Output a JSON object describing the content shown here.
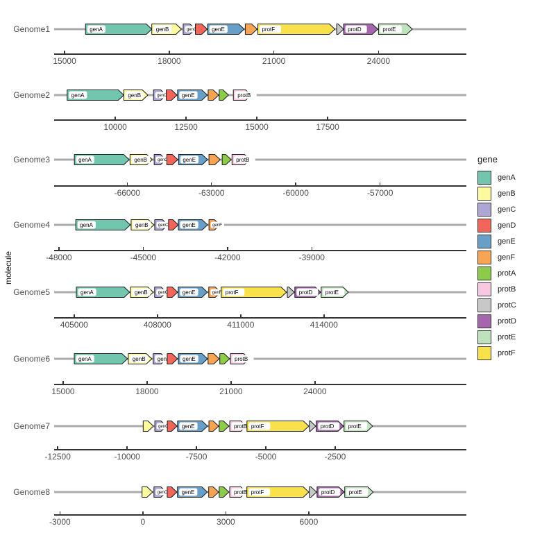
{
  "chart_data": {
    "type": "gene_arrow_map",
    "ylabel": "molecule",
    "legend_title": "gene",
    "legend_position": "right",
    "legend_entries": [
      "genA",
      "genB",
      "genC",
      "genD",
      "genE",
      "genF",
      "protA",
      "protB",
      "protC",
      "protD",
      "protE",
      "protF"
    ],
    "colors": {
      "genA": "#72C6AD",
      "genB": "#FCFA9F",
      "genC": "#AEA6D2",
      "genD": "#F2655B",
      "genE": "#689FC9",
      "genF": "#F8A452",
      "protA": "#8DCC48",
      "protB": "#F8C8E2",
      "protC": "#C8C8C8",
      "protD": "#A566AD",
      "protE": "#BDE2BC",
      "protF": "#F8E14B"
    },
    "style": {
      "molecule_line_color": "#ABABAB",
      "arrow_outline_color": "#1A1A1A",
      "axis_color": "#333333",
      "tick_text_color": "#4D4D4D",
      "label_box_color": "#FFFFFF"
    },
    "genomes": [
      {
        "name": "Genome1",
        "xmin": 14700,
        "xmax": 26520,
        "ticks": [
          15000,
          18000,
          21000,
          24000
        ],
        "genes": [
          {
            "gene": "genA",
            "start": 15600,
            "end": 17500,
            "label": "genA"
          },
          {
            "gene": "genB",
            "start": 17500,
            "end": 18350,
            "label": "genB"
          },
          {
            "gene": "genC",
            "start": 18400,
            "end": 18750,
            "label": "genC",
            "small": true
          },
          {
            "gene": "genD",
            "start": 18750,
            "end": 19090,
            "label": ""
          },
          {
            "gene": "genE",
            "start": 19100,
            "end": 20150,
            "label": "genE"
          },
          {
            "gene": "genF",
            "start": 20180,
            "end": 20520,
            "label": ""
          },
          {
            "gene": "protF",
            "start": 20540,
            "end": 22750,
            "label": "protF"
          },
          {
            "gene": "protC",
            "start": 22800,
            "end": 23000,
            "label": ""
          },
          {
            "gene": "protD",
            "start": 23000,
            "end": 23980,
            "label": "protD"
          },
          {
            "gene": "protE",
            "start": 24000,
            "end": 24970,
            "label": "protE"
          }
        ]
      },
      {
        "name": "Genome2",
        "xmin": 7840,
        "xmax": 22400,
        "ticks": [
          10000,
          12500,
          15000,
          17500
        ],
        "genes": [
          {
            "gene": "genA",
            "start": 8300,
            "end": 10300,
            "label": "genA"
          },
          {
            "gene": "genB",
            "start": 10300,
            "end": 11150,
            "label": "genB"
          },
          {
            "gene": "genC",
            "start": 11350,
            "end": 11800,
            "label": "genC",
            "small": true
          },
          {
            "gene": "genD",
            "start": 11800,
            "end": 12180,
            "label": ""
          },
          {
            "gene": "genE",
            "start": 12200,
            "end": 13250,
            "label": "genE"
          },
          {
            "gene": "genF",
            "start": 13280,
            "end": 13650,
            "label": ""
          },
          {
            "gene": "protA",
            "start": 13670,
            "end": 14000,
            "label": ""
          },
          {
            "gene": "protB",
            "start": 14170,
            "end": 14800,
            "label": "protB"
          }
        ]
      },
      {
        "name": "Genome3",
        "xmin": -68600,
        "xmax": -53930,
        "ticks": [
          -66000,
          -63000,
          -60000,
          -57000
        ],
        "genes": [
          {
            "gene": "genA",
            "start": -67880,
            "end": -65930,
            "label": "genA"
          },
          {
            "gene": "genB",
            "start": -65900,
            "end": -65110,
            "label": "genB"
          },
          {
            "gene": "genC",
            "start": -65040,
            "end": -64620,
            "label": "genC",
            "small": true
          },
          {
            "gene": "genD",
            "start": -64590,
            "end": -64200,
            "label": ""
          },
          {
            "gene": "genE",
            "start": -64170,
            "end": -63140,
            "label": "genE"
          },
          {
            "gene": "genF",
            "start": -63090,
            "end": -62690,
            "label": ""
          },
          {
            "gene": "protA",
            "start": -62620,
            "end": -62300,
            "label": ""
          },
          {
            "gene": "protB",
            "start": -62270,
            "end": -61630,
            "label": "protB"
          }
        ]
      },
      {
        "name": "Genome4",
        "xmin": -48170,
        "xmax": -33500,
        "ticks": [
          -48000,
          -45000,
          -42000,
          -39000
        ],
        "genes": [
          {
            "gene": "genA",
            "start": -47400,
            "end": -45460,
            "label": "genA"
          },
          {
            "gene": "genB",
            "start": -45430,
            "end": -44620,
            "label": "genB"
          },
          {
            "gene": "genC",
            "start": -44590,
            "end": -44120,
            "label": "genC",
            "small": true
          },
          {
            "gene": "genD",
            "start": -44100,
            "end": -43750,
            "label": ""
          },
          {
            "gene": "genE",
            "start": -43750,
            "end": -42710,
            "label": "genE"
          },
          {
            "gene": "genF",
            "start": -42660,
            "end": -42270,
            "label": "genF",
            "small": true
          }
        ]
      },
      {
        "name": "Genome5",
        "xmin": 404280,
        "xmax": 419130,
        "ticks": [
          405000,
          408000,
          411000,
          414000
        ],
        "genes": [
          {
            "gene": "genA",
            "start": 405080,
            "end": 407000,
            "label": "genA"
          },
          {
            "gene": "genB",
            "start": 407030,
            "end": 407850,
            "label": "genB"
          },
          {
            "gene": "genC",
            "start": 407900,
            "end": 408330,
            "label": "genC",
            "small": true
          },
          {
            "gene": "genD",
            "start": 408350,
            "end": 408730,
            "label": ""
          },
          {
            "gene": "genE",
            "start": 408750,
            "end": 409800,
            "label": "genE"
          },
          {
            "gene": "genF",
            "start": 409850,
            "end": 410280,
            "label": "genF",
            "small": true
          },
          {
            "gene": "protF",
            "start": 410300,
            "end": 412650,
            "label": "protF"
          },
          {
            "gene": "protC",
            "start": 412680,
            "end": 412930,
            "label": ""
          },
          {
            "gene": "protD",
            "start": 412950,
            "end": 413880,
            "label": "protD"
          },
          {
            "gene": "protE",
            "start": 413900,
            "end": 414880,
            "label": "protE"
          }
        ]
      },
      {
        "name": "Genome6",
        "xmin": 14680,
        "xmax": 29410,
        "ticks": [
          15000,
          18000,
          21000,
          24000
        ],
        "genes": [
          {
            "gene": "genA",
            "start": 15400,
            "end": 17300,
            "label": "genA"
          },
          {
            "gene": "genB",
            "start": 17330,
            "end": 18170,
            "label": "genB"
          },
          {
            "gene": "genC",
            "start": 18220,
            "end": 18700,
            "label": "genC"
          },
          {
            "gene": "genD",
            "start": 18720,
            "end": 19090,
            "label": ""
          },
          {
            "gene": "genE",
            "start": 19120,
            "end": 20160,
            "label": "genE"
          },
          {
            "gene": "genF",
            "start": 20180,
            "end": 20580,
            "label": ""
          },
          {
            "gene": "protA",
            "start": 20600,
            "end": 20950,
            "label": ""
          },
          {
            "gene": "protB",
            "start": 20980,
            "end": 21650,
            "label": "protB"
          }
        ]
      },
      {
        "name": "Genome7",
        "xmin": -12630,
        "xmax": 2230,
        "ticks": [
          -12500,
          -10000,
          -7500,
          -5000,
          -2500
        ],
        "genes": [
          {
            "gene": "genB",
            "start": -9420,
            "end": -9050,
            "label": ""
          },
          {
            "gene": "genC",
            "start": -9000,
            "end": -8580,
            "label": "genC",
            "small": true
          },
          {
            "gene": "genD",
            "start": -8550,
            "end": -8200,
            "label": ""
          },
          {
            "gene": "genE",
            "start": -8180,
            "end": -7100,
            "label": "genE"
          },
          {
            "gene": "genF",
            "start": -7050,
            "end": -6700,
            "label": ""
          },
          {
            "gene": "protA",
            "start": -6680,
            "end": -6330,
            "label": ""
          },
          {
            "gene": "protB",
            "start": -6300,
            "end": -5700,
            "label": "protB"
          },
          {
            "gene": "protF",
            "start": -5680,
            "end": -3450,
            "label": "protF"
          },
          {
            "gene": "protC",
            "start": -3430,
            "end": -3200,
            "label": ""
          },
          {
            "gene": "protD",
            "start": -3180,
            "end": -2200,
            "label": "protD"
          },
          {
            "gene": "protE",
            "start": -2180,
            "end": -1150,
            "label": "protE"
          }
        ]
      },
      {
        "name": "Genome8",
        "xmin": -3210,
        "xmax": 11700,
        "ticks": [
          -3000,
          0,
          3000,
          6000
        ],
        "genes": [
          {
            "gene": "genB",
            "start": -30,
            "end": 350,
            "label": ""
          },
          {
            "gene": "genC",
            "start": 400,
            "end": 850,
            "label": "genC",
            "small": true
          },
          {
            "gene": "genD",
            "start": 880,
            "end": 1230,
            "label": ""
          },
          {
            "gene": "genE",
            "start": 1250,
            "end": 2330,
            "label": "genE"
          },
          {
            "gene": "genF",
            "start": 2380,
            "end": 2740,
            "label": ""
          },
          {
            "gene": "protA",
            "start": 2760,
            "end": 3110,
            "label": ""
          },
          {
            "gene": "protB",
            "start": 3140,
            "end": 3740,
            "label": "protB"
          },
          {
            "gene": "protF",
            "start": 3760,
            "end": 6000,
            "label": "protF"
          },
          {
            "gene": "protC",
            "start": 6020,
            "end": 6280,
            "label": ""
          },
          {
            "gene": "protD",
            "start": 6300,
            "end": 7280,
            "label": "protD"
          },
          {
            "gene": "protE",
            "start": 7300,
            "end": 8330,
            "label": "protE"
          }
        ]
      }
    ]
  }
}
